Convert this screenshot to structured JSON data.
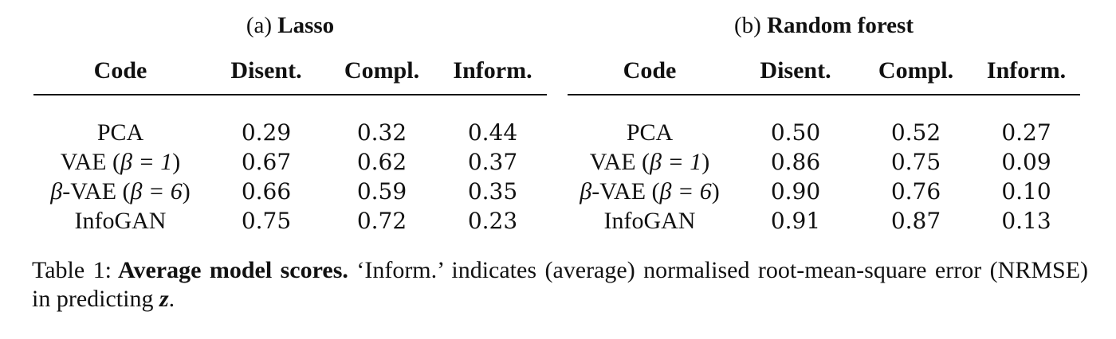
{
  "tables": [
    {
      "label": "(a)",
      "title": "Lasso",
      "columns": [
        "Code",
        "Disent.",
        "Compl.",
        "Inform."
      ],
      "rows": [
        {
          "code_pre": "",
          "code_name": "PCA",
          "code_math": "",
          "code_post": "",
          "values": [
            "0.29",
            "0.32",
            "0.44"
          ]
        },
        {
          "code_pre": "",
          "code_name": "VAE (",
          "code_math": "β = 1",
          "code_post": ")",
          "values": [
            "0.67",
            "0.62",
            "0.37"
          ]
        },
        {
          "code_pre": "β",
          "code_name": "-VAE (",
          "code_math": "β = 6",
          "code_post": ")",
          "values": [
            "0.66",
            "0.59",
            "0.35"
          ]
        },
        {
          "code_pre": "",
          "code_name": "InfoGAN",
          "code_math": "",
          "code_post": "",
          "values": [
            "0.75",
            "0.72",
            "0.23"
          ]
        }
      ]
    },
    {
      "label": "(b)",
      "title": "Random forest",
      "columns": [
        "Code",
        "Disent.",
        "Compl.",
        "Inform."
      ],
      "rows": [
        {
          "code_pre": "",
          "code_name": "PCA",
          "code_math": "",
          "code_post": "",
          "values": [
            "0.50",
            "0.52",
            "0.27"
          ]
        },
        {
          "code_pre": "",
          "code_name": "VAE (",
          "code_math": "β = 1",
          "code_post": ")",
          "values": [
            "0.86",
            "0.75",
            "0.09"
          ]
        },
        {
          "code_pre": "β",
          "code_name": "-VAE (",
          "code_math": "β = 6",
          "code_post": ")",
          "values": [
            "0.90",
            "0.76",
            "0.10"
          ]
        },
        {
          "code_pre": "",
          "code_name": "InfoGAN",
          "code_math": "",
          "code_post": "",
          "values": [
            "0.91",
            "0.87",
            "0.13"
          ]
        }
      ]
    }
  ],
  "caption": {
    "label": "Table 1:",
    "bold": "Average model scores.",
    "text": " ‘Inform.’ indicates (average) normalised root-mean-square error (NRMSE) in predicting ",
    "symbol": "z",
    "end": "."
  }
}
